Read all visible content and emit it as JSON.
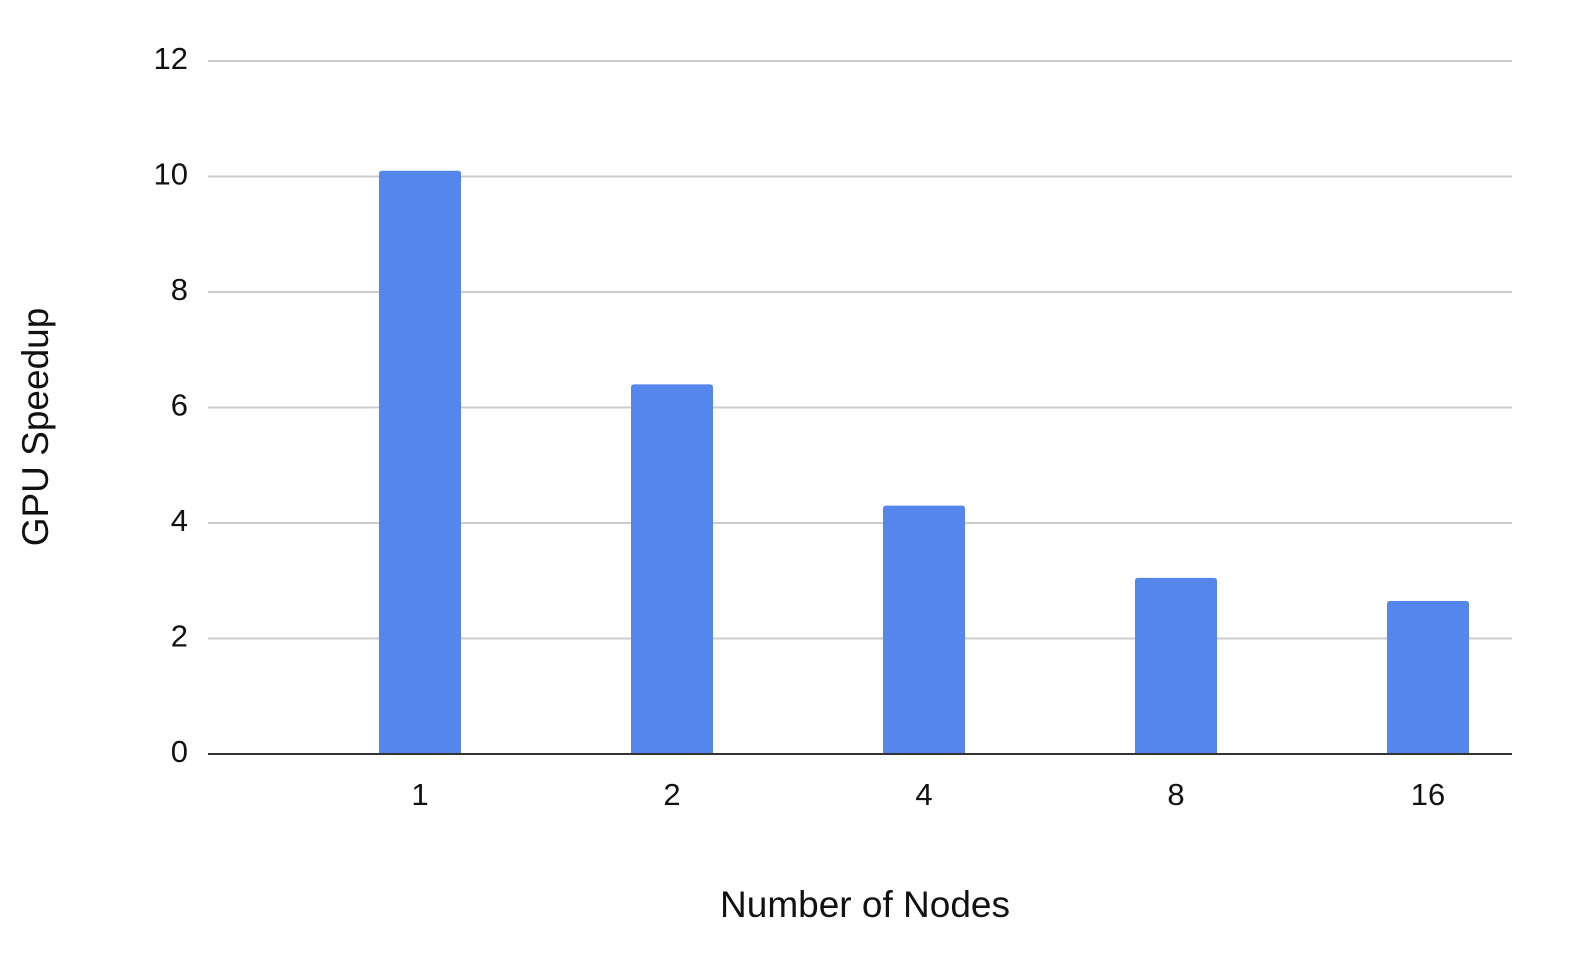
{
  "chart_data": {
    "type": "bar",
    "x_label": "Number of Nodes",
    "y_label": "GPU Speedup",
    "categories": [
      "1",
      "2",
      "4",
      "8",
      "16"
    ],
    "values": [
      10.1,
      6.4,
      4.3,
      3.05,
      2.65
    ],
    "color": "#5586eb",
    "ylim": [
      0,
      12
    ],
    "yticks": [
      0,
      2,
      4,
      6,
      8,
      10,
      12
    ],
    "grid": true
  }
}
